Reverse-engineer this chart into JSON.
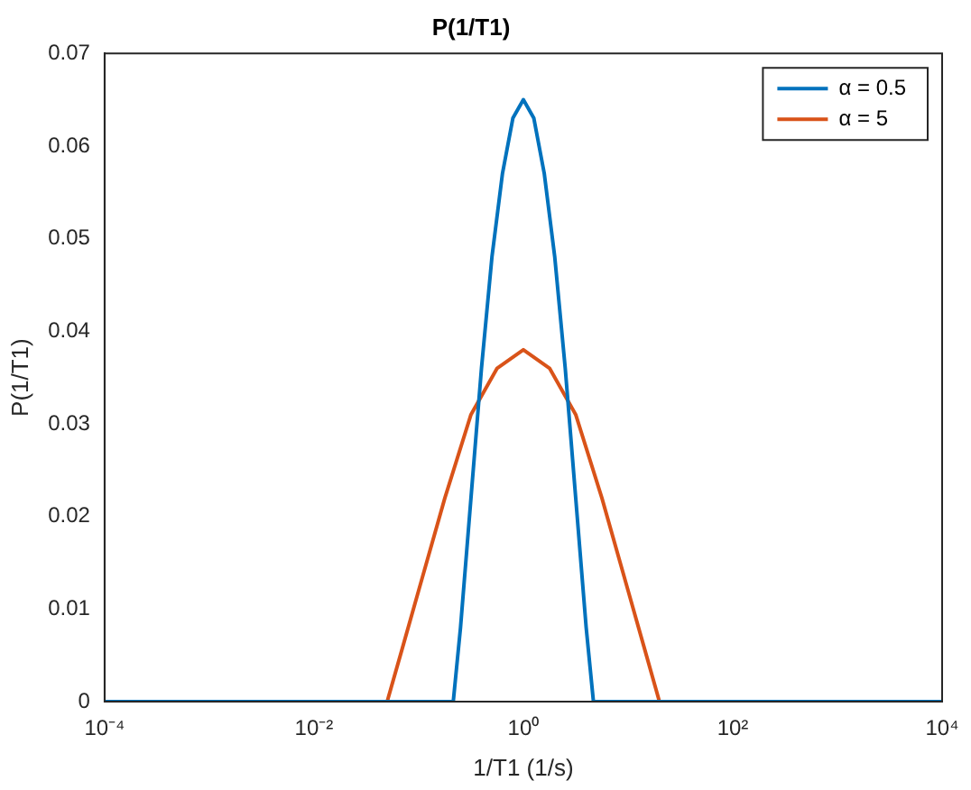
{
  "chart_data": {
    "type": "line",
    "title": "P(1/T1)",
    "xlabel": "1/T1 (1/s)",
    "ylabel": "P(1/T1)",
    "log": "x",
    "grid": false,
    "legend": "top right",
    "marker": "none",
    "line_style": "solid",
    "xlim": [
      0.0001,
      10000
    ],
    "xticks": [
      {
        "value": 0.0001,
        "label": "10⁻⁴"
      },
      {
        "value": 0.01,
        "label": "10⁻²"
      },
      {
        "value": 1,
        "label": "10⁰"
      },
      {
        "value": 100,
        "label": "10²"
      },
      {
        "value": 10000,
        "label": "10⁴"
      }
    ],
    "ylim": [
      0,
      0.07
    ],
    "yticks": [
      0,
      0.01,
      0.02,
      0.03,
      0.04,
      0.05,
      0.06,
      0.07
    ],
    "series": [
      {
        "name": "α = 0.5",
        "color": "#0072bd",
        "x": [
          0.0001,
          0.214,
          0.251,
          0.316,
          0.398,
          0.501,
          0.631,
          0.794,
          1,
          1.259,
          1.585,
          1.995,
          2.512,
          3.162,
          3.981,
          4.67,
          10000
        ],
        "values": [
          0,
          0,
          0.008,
          0.022,
          0.036,
          0.048,
          0.057,
          0.063,
          0.065,
          0.063,
          0.057,
          0.048,
          0.036,
          0.022,
          0.008,
          0,
          0
        ]
      },
      {
        "name": "α = 5",
        "color": "#d95319",
        "x": [
          0.0001,
          0.05,
          0.0708,
          0.1,
          0.178,
          0.316,
          0.562,
          1,
          1.778,
          3.162,
          5.623,
          10,
          14.13,
          19.95,
          10000
        ],
        "values": [
          0,
          0,
          0.006,
          0.012,
          0.022,
          0.031,
          0.036,
          0.038,
          0.036,
          0.031,
          0.022,
          0.012,
          0.006,
          0,
          0
        ]
      }
    ]
  }
}
